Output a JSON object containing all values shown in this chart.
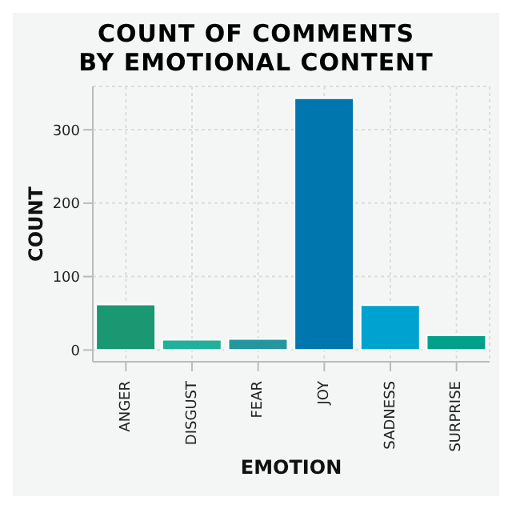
{
  "chart_data": {
    "type": "bar",
    "title": "COUNT OF COMMENTS\nBY EMOTIONAL CONTENT",
    "xlabel": "EMOTION",
    "ylabel": "COUNT",
    "categories": [
      "ANGER",
      "DISGUST",
      "FEAR",
      "JOY",
      "SADNESS",
      "SURPRISE"
    ],
    "values": [
      62,
      14,
      15,
      343,
      61,
      20
    ],
    "colors": [
      "#1a9872",
      "#22b09a",
      "#2596a0",
      "#0076ae",
      "#00a3cf",
      "#00a08a"
    ],
    "ylim": [
      -16,
      359
    ],
    "yticks": [
      0,
      100,
      200,
      300
    ],
    "grid": true
  }
}
